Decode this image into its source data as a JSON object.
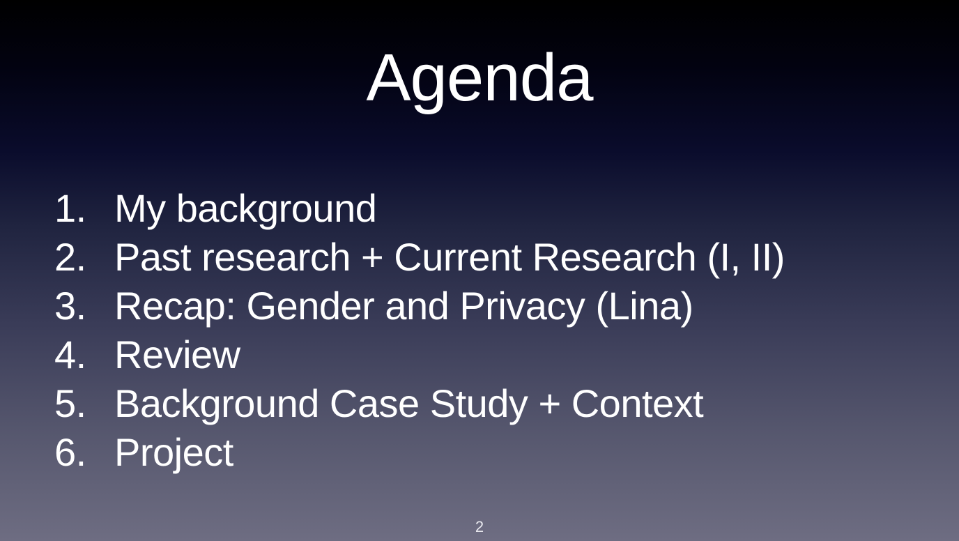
{
  "slide": {
    "title": "Agenda",
    "page_number": "2",
    "items": [
      {
        "number": "1.",
        "text": "My background"
      },
      {
        "number": "2.",
        "text": "Past research + Current Research (I, II)"
      },
      {
        "number": "3.",
        "text": "Recap: Gender and Privacy (Lina)"
      },
      {
        "number": "4.",
        "text": "Review"
      },
      {
        "number": "5.",
        "text": "Background Case Study + Context"
      },
      {
        "number": "6.",
        "text": "Project"
      }
    ]
  }
}
